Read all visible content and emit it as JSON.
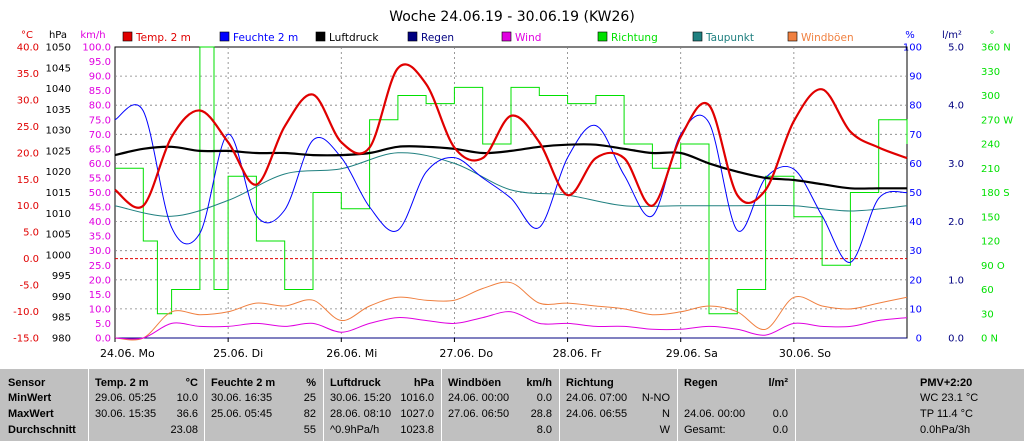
{
  "title": "Woche 24.06.19 - 30.06.19 (KW26)",
  "colors": {
    "temp": "#e00000",
    "humidity": "#0000ff",
    "pressure": "#000000",
    "rain": "#000080",
    "wind": "#e000e0",
    "direction": "#00e000",
    "dewpoint": "#208080",
    "gusts": "#f08040",
    "grid": "#808080",
    "table_bg": "#c0c0c0"
  },
  "axes_units": {
    "temp": "°C",
    "pressure": "hPa",
    "wind": "km/h",
    "humidity": "%",
    "rain": "l/m²",
    "direction": "°"
  },
  "axes_labels": {
    "temp": [
      "40.0",
      "35.0",
      "30.0",
      "25.0",
      "20.0",
      "15.0",
      "10.0",
      "5.0",
      "0.0",
      "-5.0",
      "-10.0",
      "-15.0"
    ],
    "pressure": [
      "1050",
      "1045",
      "1040",
      "1035",
      "1030",
      "1025",
      "1020",
      "1015",
      "1010",
      "1005",
      "1000",
      "995",
      "990",
      "985",
      "980"
    ],
    "wind": [
      "100.0",
      "95.0",
      "90.0",
      "85.0",
      "80.0",
      "75.0",
      "70.0",
      "65.0",
      "60.0",
      "55.0",
      "50.0",
      "45.0",
      "40.0",
      "35.0",
      "30.0",
      "25.0",
      "20.0",
      "15.0",
      "10.0",
      "5.0",
      "0.0"
    ],
    "humidity": [
      "100",
      "90",
      "80",
      "70",
      "60",
      "50",
      "40",
      "30",
      "20",
      "10",
      "0"
    ],
    "rain": [
      "5.0",
      "4.0",
      "3.0",
      "2.0",
      "1.0",
      "0.0"
    ],
    "direction": [
      "360 N",
      "330",
      "300",
      "270 W",
      "240",
      "210",
      "180 S",
      "150",
      "120",
      "90 O",
      "60",
      "30",
      "0 N"
    ]
  },
  "legend": [
    {
      "key": "temp",
      "label": "Temp. 2 m"
    },
    {
      "key": "humidity",
      "label": "Feuchte 2 m"
    },
    {
      "key": "pressure",
      "label": "Luftdruck"
    },
    {
      "key": "rain",
      "label": "Regen"
    },
    {
      "key": "wind",
      "label": "Wind"
    },
    {
      "key": "direction",
      "label": "Richtung"
    },
    {
      "key": "dewpoint",
      "label": "Taupunkt"
    },
    {
      "key": "gusts",
      "label": "Windböen"
    }
  ],
  "chart_data": {
    "type": "line",
    "title": "Woche 24.06.19 - 30.06.19 (KW26)",
    "x_start": "24.06.2019 00:00",
    "x_end": "30.06.2019 24:00",
    "x_tick_labels": [
      "24.06. Mo",
      "25.06. Di",
      "26.06. Mi",
      "27.06. Do",
      "28.06. Fr",
      "29.06. Sa",
      "30.06. So"
    ],
    "grid": true,
    "series": [
      {
        "name": "Temp. 2 m",
        "axis": "temp",
        "unit": "°C",
        "color": "#e00000",
        "x_hours": [
          0,
          6,
          12,
          18,
          24,
          30,
          36,
          42,
          48,
          54,
          60,
          66,
          72,
          78,
          84,
          90,
          96,
          102,
          108,
          114,
          120,
          126,
          132,
          138,
          144,
          150,
          156,
          162,
          168
        ],
        "values": [
          13,
          10,
          23,
          28,
          22,
          14,
          25,
          31,
          22,
          21,
          36,
          33,
          21,
          19,
          27,
          22,
          12,
          19,
          19,
          10,
          23,
          29,
          12,
          13,
          26,
          32,
          24,
          21,
          19
        ]
      },
      {
        "name": "Feuchte 2 m",
        "axis": "humidity",
        "unit": "%",
        "color": "#0000ff",
        "x_hours": [
          0,
          6,
          12,
          18,
          24,
          30,
          36,
          42,
          48,
          54,
          60,
          66,
          72,
          78,
          84,
          90,
          96,
          102,
          108,
          114,
          120,
          126,
          132,
          138,
          144,
          150,
          156,
          162,
          168
        ],
        "values": [
          75,
          78,
          38,
          36,
          70,
          42,
          44,
          68,
          62,
          45,
          37,
          57,
          62,
          55,
          48,
          38,
          62,
          73,
          56,
          42,
          70,
          74,
          37,
          55,
          58,
          42,
          26,
          48,
          50
        ]
      },
      {
        "name": "Luftdruck",
        "axis": "pressure",
        "unit": "hPa",
        "color": "#000000",
        "x_hours": [
          0,
          6,
          12,
          18,
          24,
          30,
          36,
          42,
          48,
          54,
          60,
          66,
          72,
          78,
          84,
          90,
          96,
          102,
          108,
          114,
          120,
          126,
          132,
          138,
          144,
          150,
          156,
          162,
          168
        ],
        "values": [
          1024.0,
          1025.5,
          1026.0,
          1025.0,
          1025.0,
          1024.5,
          1024.5,
          1024.0,
          1024.0,
          1024.5,
          1026.0,
          1026.0,
          1025.5,
          1024.5,
          1025.0,
          1026.0,
          1026.5,
          1026.5,
          1025.5,
          1024.5,
          1024.5,
          1022.0,
          1020.0,
          1018.5,
          1018.0,
          1017.0,
          1016.0,
          1016.0,
          1016.0
        ]
      },
      {
        "name": "Taupunkt",
        "axis": "temp",
        "unit": "°C",
        "color": "#208080",
        "x_hours": [
          0,
          12,
          24,
          36,
          48,
          60,
          72,
          84,
          96,
          108,
          120,
          132,
          144,
          156,
          168
        ],
        "values": [
          10,
          8,
          11,
          16,
          17,
          20,
          18,
          13,
          12,
          10,
          10,
          10,
          10,
          9,
          10
        ]
      },
      {
        "name": "Wind",
        "axis": "wind",
        "unit": "km/h",
        "color": "#e000e0",
        "x_hours": [
          0,
          6,
          12,
          18,
          24,
          30,
          36,
          42,
          48,
          54,
          60,
          66,
          72,
          78,
          84,
          90,
          96,
          102,
          108,
          114,
          120,
          126,
          132,
          138,
          144,
          150,
          156,
          162,
          168
        ],
        "values": [
          0,
          0,
          5,
          4,
          4,
          5,
          4,
          5,
          2,
          5,
          7,
          6,
          5,
          7,
          9,
          5,
          5,
          4,
          4,
          3,
          3,
          4,
          3,
          1,
          5,
          4,
          4,
          6,
          7
        ]
      },
      {
        "name": "Windböen",
        "axis": "wind",
        "unit": "km/h",
        "color": "#f08040",
        "x_hours": [
          0,
          6,
          12,
          18,
          24,
          30,
          36,
          42,
          48,
          54,
          60,
          66,
          72,
          78,
          84,
          90,
          96,
          102,
          108,
          114,
          120,
          126,
          132,
          138,
          144,
          150,
          156,
          162,
          168
        ],
        "values": [
          0,
          0,
          9,
          8,
          9,
          12,
          11,
          13,
          6,
          11,
          14,
          13,
          13,
          17,
          19,
          12,
          12,
          11,
          10,
          8,
          9,
          11,
          9,
          3,
          14,
          11,
          10,
          12,
          14
        ]
      },
      {
        "name": "Richtung",
        "axis": "direction",
        "unit": "°",
        "color": "#00e000",
        "x_hours": [
          0,
          6,
          9,
          12,
          18,
          21,
          24,
          30,
          36,
          42,
          48,
          54,
          60,
          66,
          72,
          78,
          84,
          90,
          96,
          102,
          108,
          114,
          120,
          126,
          132,
          138,
          144,
          150,
          156,
          162,
          168
        ],
        "values": [
          210,
          120,
          30,
          60,
          360,
          60,
          200,
          120,
          60,
          180,
          160,
          270,
          300,
          290,
          310,
          240,
          310,
          300,
          290,
          300,
          240,
          210,
          240,
          30,
          60,
          200,
          150,
          90,
          180,
          270,
          240
        ]
      },
      {
        "name": "Regen",
        "axis": "rain",
        "unit": "l/m²",
        "color": "#000080",
        "x_hours": [
          0,
          168
        ],
        "values": [
          0.0,
          0.0
        ]
      }
    ]
  },
  "table": {
    "header": {
      "sensor": "Sensor",
      "temp": "Temp. 2 m",
      "temp_unit": "°C",
      "hum": "Feuchte 2 m",
      "hum_unit": "%",
      "press": "Luftdruck",
      "press_unit": "hPa",
      "gust": "Windböen",
      "gust_unit": "km/h",
      "dir": "Richtung",
      "rain": "Regen",
      "rain_unit": "l/m²",
      "pmv": "PMV+2:20"
    },
    "rows": [
      {
        "label": "MinWert",
        "temp_time": "29.06.  05:25",
        "temp_val": "10.0",
        "hum_time": "30.06.  16:35",
        "hum_val": "25",
        "press_time": "30.06.  15:20",
        "press_val": "1016.0",
        "gust_time": "24.06.  00:00",
        "gust_val": "0.0",
        "dir_time": "24.06.  07:00",
        "dir_val": "N-NO",
        "rain_time": "",
        "rain_val": "",
        "pmv": "WC 23.1 °C"
      },
      {
        "label": "MaxWert",
        "temp_time": "30.06.  15:35",
        "temp_val": "36.6",
        "hum_time": "25.06.  05:45",
        "hum_val": "82",
        "press_time": "28.06.  08:10",
        "press_val": "1027.0",
        "gust_time": "27.06.  06:50",
        "gust_val": "28.8",
        "dir_time": "24.06.  06:55",
        "dir_val": "N",
        "rain_time": "24.06.  00:00",
        "rain_val": "0.0",
        "pmv": "TP 11.4 °C"
      },
      {
        "label": "Durchschnitt",
        "temp_time": "",
        "temp_val": "23.08",
        "hum_time": "",
        "hum_val": "55",
        "press_time": "^0.9hPa/h",
        "press_val": "1023.8",
        "gust_time": "",
        "gust_val": "8.0",
        "dir_time": "",
        "dir_val": "W",
        "rain_time": "Gesamt:",
        "rain_val": "0.0",
        "pmv": "0.0hPa/3h"
      }
    ]
  }
}
